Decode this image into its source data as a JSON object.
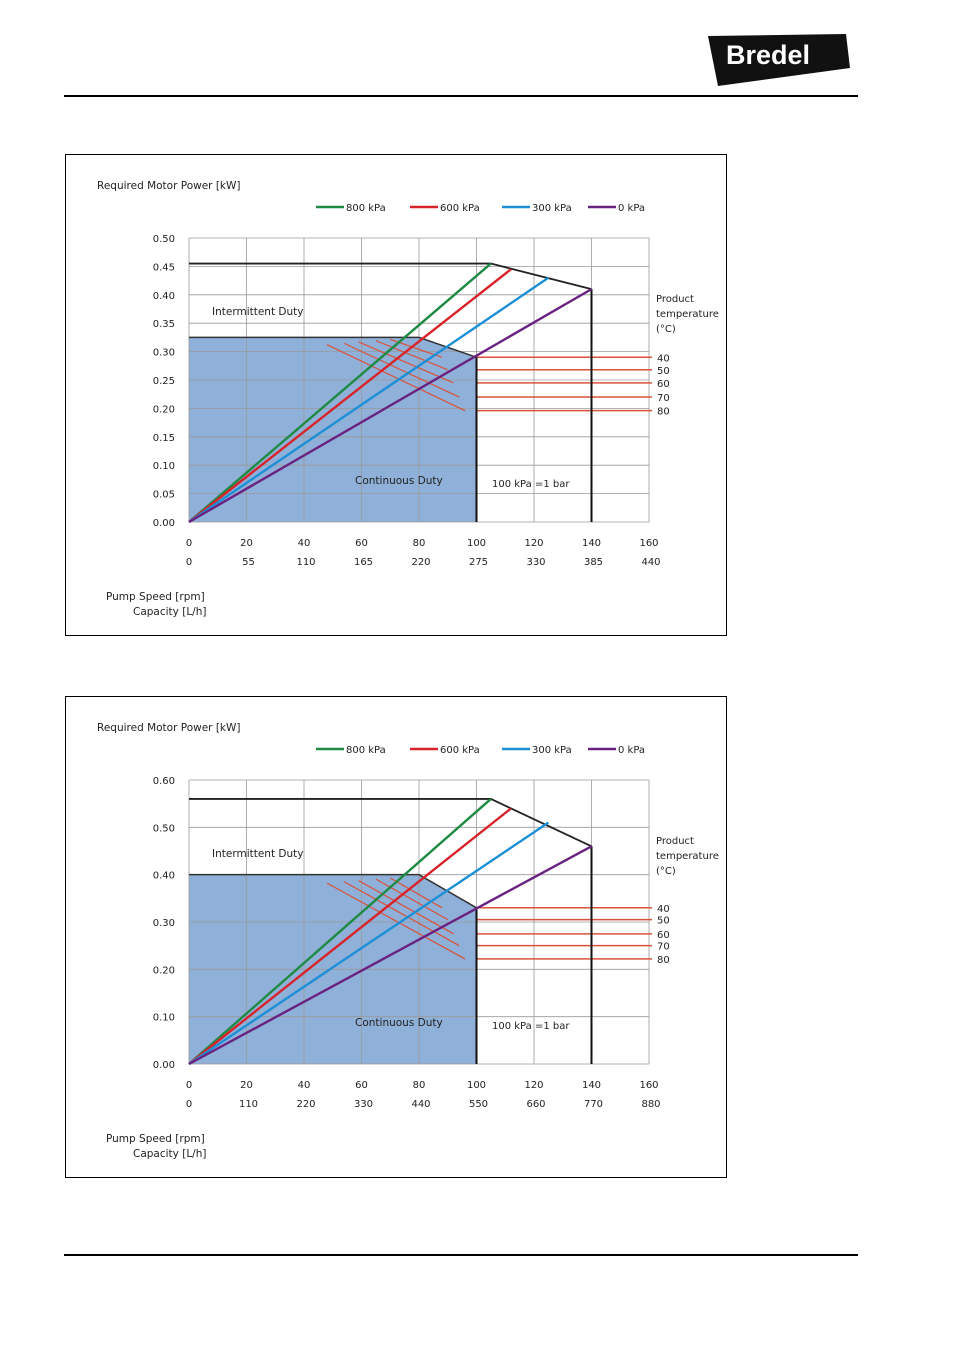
{
  "header": {
    "logo_text": "Bredel",
    "logo_bg": "#111111"
  },
  "colors": {
    "p800": "#1e8a44",
    "p600": "#d8232a",
    "p300": "#1c8fd6",
    "p0": "#6a2281",
    "temp": "#d9523a",
    "fill": "#8fb0d8",
    "grid": "#9a9a9a"
  },
  "chart_data": [
    {
      "type": "line",
      "title": "Required Motor Power [kW]",
      "xlabel": "Pump Speed [rpm]",
      "xlabel2": "Capacity [L/h]",
      "ylim": [
        0,
        0.5
      ],
      "yticks": [
        "0.00",
        "0.05",
        "0.10",
        "0.15",
        "0.20",
        "0.25",
        "0.30",
        "0.35",
        "0.40",
        "0.45",
        "0.50"
      ],
      "xlim": [
        0,
        160
      ],
      "xticks": [
        "0",
        "20",
        "40",
        "60",
        "80",
        "100",
        "120",
        "140",
        "160"
      ],
      "xticks2": [
        "0",
        "55",
        "110",
        "165",
        "220",
        "275",
        "330",
        "385",
        "440"
      ],
      "legend": [
        "800 kPa",
        "600 kPa",
        "300 kPa",
        "0 kPa"
      ],
      "legend_position": "top",
      "grid": true,
      "series": [
        {
          "name": "800 kPa",
          "color": "#1e8a44",
          "points": [
            [
              0,
              0
            ],
            [
              105,
              0.455
            ]
          ]
        },
        {
          "name": "600 kPa",
          "color": "#d8232a",
          "points": [
            [
              0,
              0
            ],
            [
              112,
              0.445
            ]
          ]
        },
        {
          "name": "300 kPa",
          "color": "#1c8fd6",
          "points": [
            [
              0,
              0
            ],
            [
              125,
              0.43
            ]
          ]
        },
        {
          "name": "0 kPa",
          "color": "#6a2281",
          "points": [
            [
              0,
              0
            ],
            [
              140,
              0.41
            ]
          ]
        }
      ],
      "max_power_line": [
        [
          0,
          0.455
        ],
        [
          105,
          0.455
        ],
        [
          140,
          0.41
        ]
      ],
      "continuous_limit": {
        "power": 0.325,
        "speed": 100,
        "power_at_speed": 0.29
      },
      "max_speed": 140,
      "temperature_lines": {
        "title": [
          "Product",
          "temperature",
          "(°C)"
        ],
        "levels": [
          "40",
          "50",
          "60",
          "70",
          "80"
        ],
        "powers": [
          0.29,
          0.268,
          0.245,
          0.22,
          0.196
        ]
      },
      "annotations": {
        "intermittent": "Intermittent Duty",
        "continuous": "Continuous Duty",
        "pressure_note": "100 kPa =1 bar"
      }
    },
    {
      "type": "line",
      "title": "Required Motor Power [kW]",
      "xlabel": "Pump Speed [rpm]",
      "xlabel2": "Capacity [L/h]",
      "ylim": [
        0,
        0.6
      ],
      "yticks": [
        "0.00",
        "0.10",
        "0.20",
        "0.30",
        "0.40",
        "0.50",
        "0.60"
      ],
      "xlim": [
        0,
        160
      ],
      "xticks": [
        "0",
        "20",
        "40",
        "60",
        "80",
        "100",
        "120",
        "140",
        "160"
      ],
      "xticks2": [
        "0",
        "110",
        "220",
        "330",
        "440",
        "550",
        "660",
        "770",
        "880"
      ],
      "legend": [
        "800 kPa",
        "600 kPa",
        "300 kPa",
        "0 kPa"
      ],
      "legend_position": "top",
      "grid": true,
      "series": [
        {
          "name": "800 kPa",
          "color": "#1e8a44",
          "points": [
            [
              0,
              0
            ],
            [
              105,
              0.56
            ]
          ]
        },
        {
          "name": "600 kPa",
          "color": "#d8232a",
          "points": [
            [
              0,
              0
            ],
            [
              112,
              0.54
            ]
          ]
        },
        {
          "name": "300 kPa",
          "color": "#1c8fd6",
          "points": [
            [
              0,
              0
            ],
            [
              125,
              0.51
            ]
          ]
        },
        {
          "name": "0 kPa",
          "color": "#6a2281",
          "points": [
            [
              0,
              0
            ],
            [
              140,
              0.46
            ]
          ]
        }
      ],
      "max_power_line": [
        [
          0,
          0.56
        ],
        [
          105,
          0.56
        ],
        [
          140,
          0.46
        ]
      ],
      "continuous_limit": {
        "power": 0.4,
        "speed": 100,
        "power_at_speed": 0.33
      },
      "max_speed": 140,
      "temperature_lines": {
        "title": [
          "Product",
          "temperature",
          "(°C)"
        ],
        "levels": [
          "40",
          "50",
          "60",
          "70",
          "80"
        ],
        "powers": [
          0.33,
          0.305,
          0.275,
          0.25,
          0.222
        ]
      },
      "annotations": {
        "intermittent": "Intermittent Duty",
        "continuous": "Continuous Duty",
        "pressure_note": "100 kPa =1 bar"
      }
    }
  ]
}
